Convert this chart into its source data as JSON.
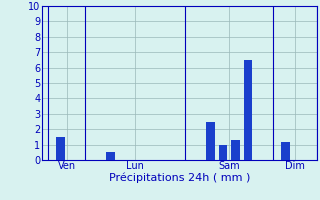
{
  "bars": [
    {
      "x": 1,
      "height": 1.5
    },
    {
      "x": 5,
      "height": 0.5
    },
    {
      "x": 13,
      "height": 2.5
    },
    {
      "x": 14,
      "height": 1.0
    },
    {
      "x": 15,
      "height": 1.3
    },
    {
      "x": 16,
      "height": 6.5
    },
    {
      "x": 19,
      "height": 1.2
    }
  ],
  "bar_color": "#1a3fcc",
  "bar_width": 0.7,
  "xlim": [
    -0.5,
    21.5
  ],
  "ylim": [
    0,
    10
  ],
  "yticks": [
    0,
    1,
    2,
    3,
    4,
    5,
    6,
    7,
    8,
    9,
    10
  ],
  "day_separators": [
    0,
    3,
    11,
    18,
    21.5
  ],
  "day_labels": [
    {
      "x": 1.5,
      "label": "Ven"
    },
    {
      "x": 7.0,
      "label": "Lun"
    },
    {
      "x": 14.5,
      "label": "Sam"
    },
    {
      "x": 19.75,
      "label": "Dim"
    }
  ],
  "xlabel": "Précipitations 24h ( mm )",
  "background_color": "#d8f2f0",
  "grid_color": "#9ab8b8",
  "axis_color": "#0000bb",
  "label_color": "#0000bb",
  "xlabel_fontsize": 8,
  "tick_fontsize": 7
}
